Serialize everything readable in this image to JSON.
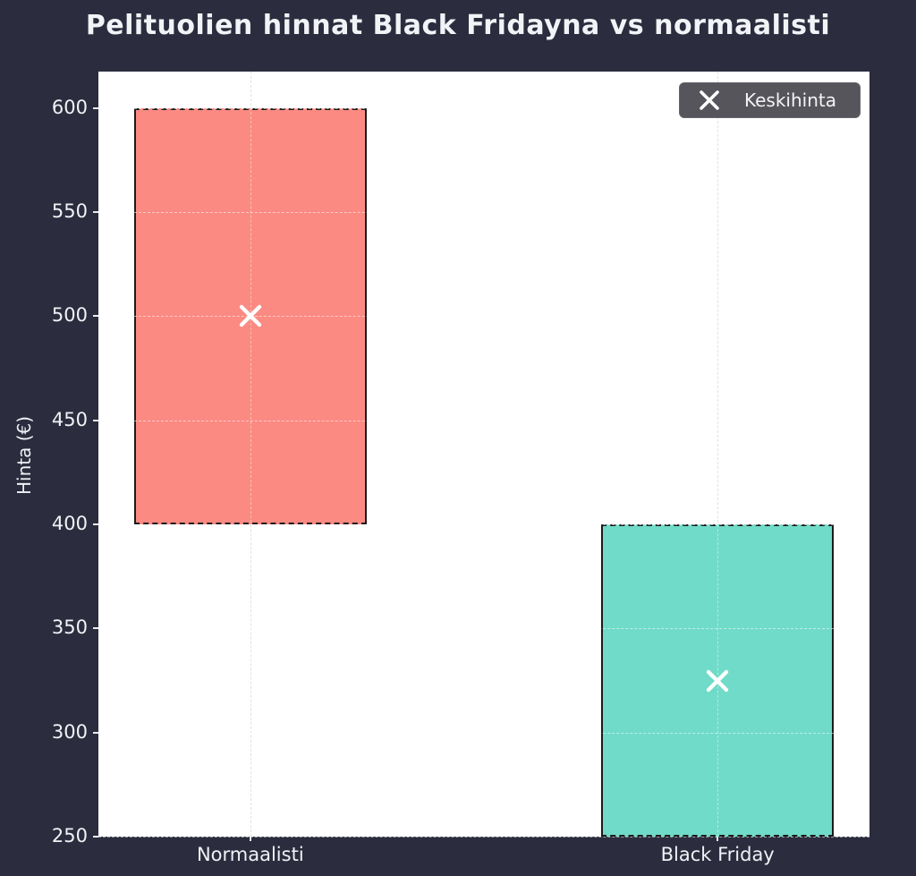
{
  "title": "Pelituolien hinnat Black Fridayna vs normaalisti",
  "y_axis": {
    "label": "Hinta (€)"
  },
  "legend": {
    "label": "Keskihinta",
    "marker": "x-marker-icon"
  },
  "colors": {
    "background": "#2b2d3e",
    "plot_background": "#ffffff",
    "normal_bar": "#fb8a82",
    "black_friday_bar": "#70dbc8",
    "bar_edge": "#1b1b1b",
    "legend_background": "#55555b",
    "marker": "#ffffff",
    "text": "#f0f2f6"
  },
  "chart_data": {
    "type": "bar",
    "title": "Pelituolien hinnat Black Fridayna vs normaalisti",
    "categories": [
      "Normaalisti",
      "Black Friday"
    ],
    "bars": [
      {
        "category": "Normaalisti",
        "price_range": [
          400,
          600
        ],
        "mean": 500,
        "color": "#fb8a82"
      },
      {
        "category": "Black Friday",
        "price_range": [
          250,
          400
        ],
        "mean": 325,
        "color": "#70dbc8"
      }
    ],
    "xlabel": "",
    "ylabel": "Hinta (€)",
    "yticks": [
      250,
      300,
      350,
      400,
      450,
      500,
      550,
      600
    ],
    "ylim": [
      250,
      617.5
    ],
    "grid": true,
    "legend": {
      "entries": [
        "Keskihinta"
      ],
      "marker": "x",
      "position": "upper right"
    }
  }
}
